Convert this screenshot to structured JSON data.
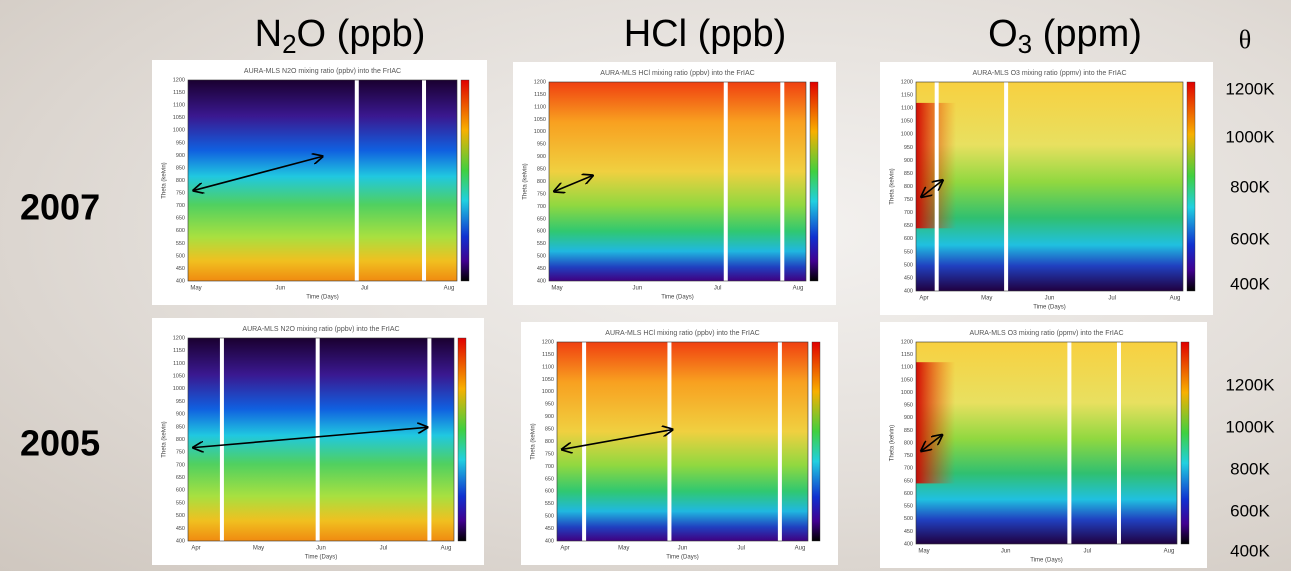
{
  "headers": [
    {
      "main": "N",
      "sub": "2",
      "rest": "O (ppb)"
    },
    {
      "main": "HCl (ppb)"
    },
    {
      "main": "O",
      "sub": "3",
      "rest": " (ppm)"
    }
  ],
  "theta_symbol": "θ",
  "row_labels": [
    "2007",
    "2005"
  ],
  "theta_labels": [
    [
      "1200K",
      "1000K",
      "800K",
      "600K",
      "400K"
    ],
    [
      "1200K",
      "1000K",
      "800K",
      "600K",
      "400K"
    ]
  ],
  "panels": [
    [
      {
        "title": "AURA-MLS N2O mixing ratio (ppbv) into the FrIAC",
        "months": [
          "May",
          "Jun",
          "Jul",
          "Aug"
        ],
        "xlabel": "Time (Days)",
        "ylabel": "Theta (kelvin)",
        "yticks": [
          1200,
          1150,
          1100,
          1050,
          1000,
          950,
          900,
          850,
          800,
          750,
          700,
          650,
          600,
          550,
          500,
          450,
          400
        ]
      },
      {
        "title": "AURA-MLS HCl mixing ratio (ppbv) into the FrIAC",
        "months": [
          "May",
          "Jun",
          "Jul",
          "Aug"
        ],
        "xlabel": "Time (Days)",
        "ylabel": "Theta (kelvin)",
        "yticks": [
          1200,
          1150,
          1100,
          1050,
          1000,
          950,
          900,
          850,
          800,
          750,
          700,
          650,
          600,
          550,
          500,
          450,
          400
        ]
      },
      {
        "title": "AURA-MLS O3 mixing ratio (ppmv) into the FrIAC",
        "months": [
          "Apr",
          "May",
          "Jun",
          "Jul",
          "Aug"
        ],
        "xlabel": "Time (Days)",
        "ylabel": "Theta (kelvin)",
        "yticks": [
          1200,
          1150,
          1100,
          1050,
          1000,
          950,
          900,
          850,
          800,
          750,
          700,
          650,
          600,
          550,
          500,
          450,
          400
        ]
      }
    ],
    [
      {
        "title": "AURA-MLS N2O mixing ratio (ppbv) into the FrIAC",
        "months": [
          "Apr",
          "May",
          "Jun",
          "Jul",
          "Aug"
        ],
        "xlabel": "Time (Days)",
        "ylabel": "Theta (kelvin)",
        "yticks": [
          1200,
          1150,
          1100,
          1050,
          1000,
          950,
          900,
          850,
          800,
          750,
          700,
          650,
          600,
          550,
          500,
          450,
          400
        ]
      },
      {
        "title": "AURA-MLS HCl mixing ratio (ppbv) into the FrIAC",
        "months": [
          "Apr",
          "May",
          "Jun",
          "Jul",
          "Aug"
        ],
        "xlabel": "Time (Days)",
        "ylabel": "Theta (kelvin)",
        "yticks": [
          1200,
          1150,
          1100,
          1050,
          1000,
          950,
          900,
          850,
          800,
          750,
          700,
          650,
          600,
          550,
          500,
          450,
          400
        ]
      },
      {
        "title": "AURA-MLS O3 mixing ratio (ppmv) into the FrIAC",
        "months": [
          "May",
          "Jun",
          "Jul",
          "Aug"
        ],
        "xlabel": "Time (Days)",
        "ylabel": "Theta (kelvin)",
        "yticks": [
          1200,
          1150,
          1100,
          1050,
          1000,
          950,
          900,
          850,
          800,
          750,
          700,
          650,
          600,
          550,
          500,
          450,
          400
        ]
      }
    ]
  ]
}
